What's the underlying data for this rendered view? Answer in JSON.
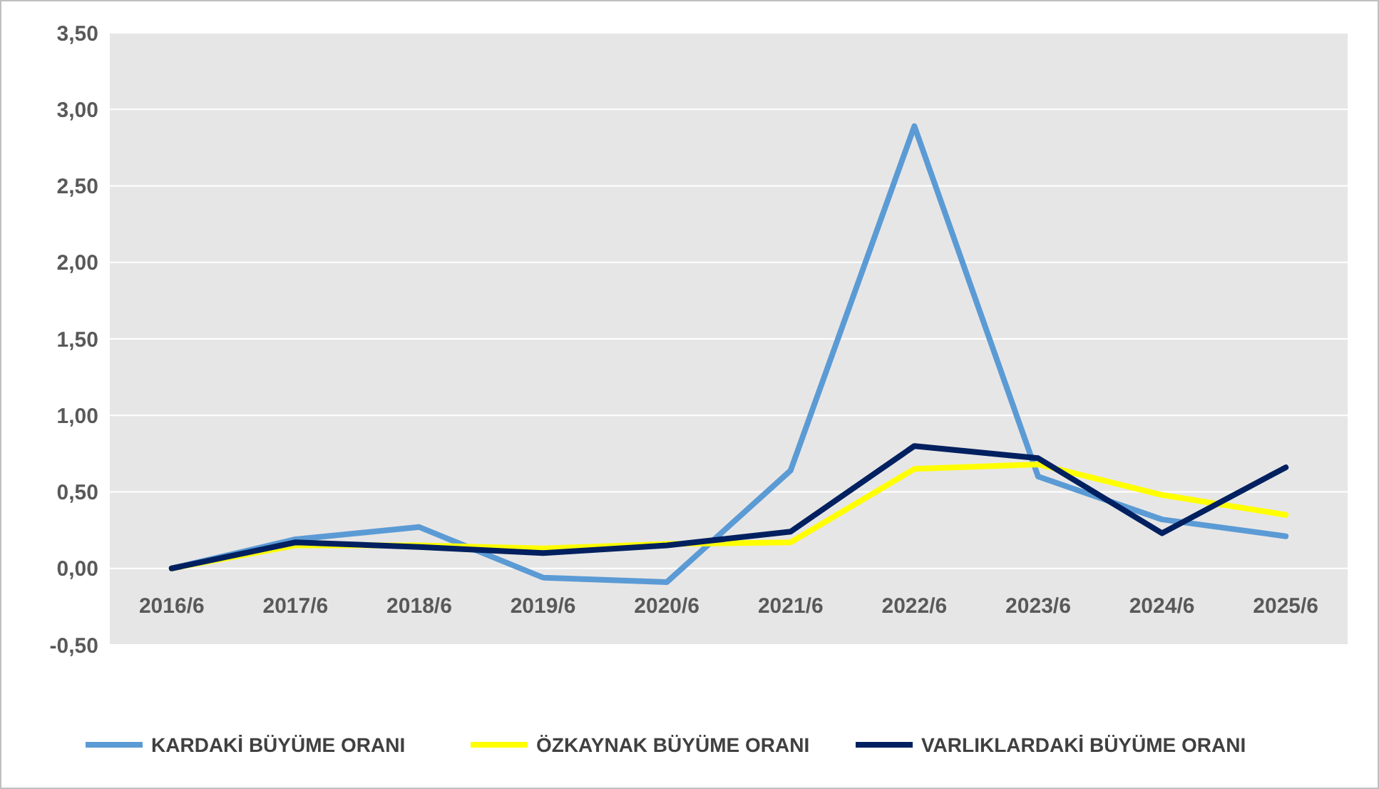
{
  "chart_data": {
    "type": "line",
    "categories": [
      "2016/6",
      "2017/6",
      "2018/6",
      "2019/6",
      "2020/6",
      "2021/6",
      "2022/6",
      "2023/6",
      "2024/6",
      "2025/6"
    ],
    "series": [
      {
        "name": "KARDAKİ BÜYÜME ORANI",
        "color": "#5b9bd5",
        "values": [
          0,
          0.19,
          0.27,
          -0.06,
          -0.09,
          0.64,
          2.89,
          0.6,
          0.32,
          0.21
        ]
      },
      {
        "name": "ÖZKAYNAK BÜYÜME ORANI",
        "color": "#ffff00",
        "values": [
          0,
          0.15,
          0.15,
          0.13,
          0.16,
          0.17,
          0.65,
          0.68,
          0.48,
          0.35
        ]
      },
      {
        "name": "VARLIKLARDAKİ BÜYÜME ORANI",
        "color": "#002060",
        "values": [
          0,
          0.17,
          0.14,
          0.1,
          0.15,
          0.24,
          0.8,
          0.72,
          0.23,
          0.66
        ]
      }
    ],
    "ylim": [
      -0.5,
      3.5
    ],
    "yticks": [
      {
        "value": -0.5,
        "label": "-0,50"
      },
      {
        "value": 0,
        "label": "0,00"
      },
      {
        "value": 0.5,
        "label": "0,50"
      },
      {
        "value": 1,
        "label": "1,00"
      },
      {
        "value": 1.5,
        "label": "1,50"
      },
      {
        "value": 2,
        "label": "2,00"
      },
      {
        "value": 2.5,
        "label": "2,50"
      },
      {
        "value": 3,
        "label": "3,00"
      },
      {
        "value": 3.5,
        "label": "3,50"
      }
    ],
    "grid": "y",
    "legend": "bottom",
    "marker": "none",
    "line_style": "solid"
  }
}
